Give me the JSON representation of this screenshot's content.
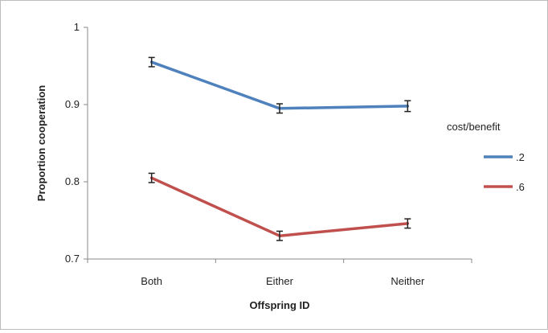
{
  "chart_data": {
    "type": "line",
    "categories": [
      "Both",
      "Either",
      "Neither"
    ],
    "xlabel": "Offspring ID",
    "ylabel": "Proportion cooperation",
    "ylim": [
      0.7,
      1
    ],
    "yticks": [
      "0.7",
      "0.8",
      "0.9",
      "1"
    ],
    "legend_title": "cost/benefit",
    "legend_position": "right",
    "grid": false,
    "series": [
      {
        "name": ".2",
        "color": "#4f81bd",
        "values": [
          0.955,
          0.895,
          0.898
        ],
        "errors": [
          0.006,
          0.006,
          0.007
        ]
      },
      {
        "name": ".6",
        "color": "#c0504d",
        "values": [
          0.805,
          0.73,
          0.746
        ],
        "errors": [
          0.006,
          0.006,
          0.006
        ]
      }
    ]
  }
}
